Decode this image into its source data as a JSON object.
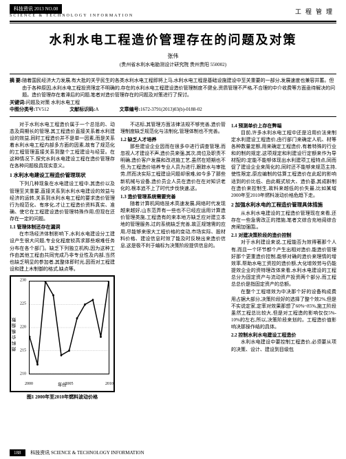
{
  "header": {
    "journal_tag": "科技资讯",
    "issue_line": "2013  NO.08",
    "sub_line": "SCIENCE & TECHNOLOGY INFORMATION",
    "category": "工程管理"
  },
  "title": "水利水电工程造价管理存在的问题及对策",
  "author": "张伟",
  "affiliation": "(贵州省水利水电勘测设计研究院  贵州贵阳  550002)",
  "abstract": {
    "label": "摘 要:",
    "text": "随着国民经济大力发展,有大批的关乎民生的各类水利水电工程即将上马,水利水电工程是基础设施建设中至关重要的一部分,发展速度也兼容并蓄。但由于各种原因,水利水电工程投资限定不明确的,存在的水利水电工程建设造价管理制度不健全,资质管理不严格,不合理的中介收费等方面亟待解决的问题。造价管理存在着滞后的问题,笔者对造价管理存在的问题及对策进行了探讨。"
  },
  "keywords": {
    "label": "关键词:",
    "text": "问题及对策  水利水电工程"
  },
  "clc": {
    "label": "中图分类号:",
    "text": "TV512"
  },
  "doc_code": {
    "label": "文献标识码:",
    "text": "A"
  },
  "article_no": {
    "label": "文章编号:",
    "text": "1672-3791(2013)03(b)-0188-02"
  },
  "col1": {
    "p1": "对于水利水电工程造价属于一个总括的、动态及周期长的管理,其工程造价直接关系着水利建设的效益,同时工程造价并不是单一因素,而是关系着水利水电工程内部多方面的因素,故有了规范化的工程管理直接关系到整个工程建设与经营。在这种情况下,探究水利水电建设工程在造价管理存在各种问题极具现实意义。",
    "h1": "1 水利水电建设工程造价管理现状",
    "p2": "下列几种现象在水电建设工程中,其造价以及管理至关重要,直接关系到水利水电建设的效益与经济的运转,关系到水利水电工程的要求造价管理行为规范化、有序化,才让工程造价资料真实、准确、使它在工程建设造价管理特殊作用,但现在还存在一定的问题。",
    "sh1": "1.1 管理体制还存在漏洞",
    "p3": "在市场经济体制影响下,水利水电建设分工建设产生很大问题,专业化程度较高求那些艰难任务分布在各个部门。缺乏下列独立机构,因为这种工作由其他工程由共同完成乃非专业性及内部,当然也缺乏明显的参加者,其整体即时光,因而对工程建设和建上木制御的格式,缺点等。"
  },
  "col2": {
    "p1": "不达标,其管理方面法律法规不够完善,造价管理制度缺乏规范化与法制化,管理体制也不完善。",
    "sh1": "1.2 缺乏人才培养",
    "p2": "那些建设企业因而在很多中进行调查管理,而忽视人才建设不声,造价员来强,其次,岗位及职责不明确,造价客户发展和改进施工艺,虽然在短期也不但,为工程造价培养专业人员为进行,跟踪水与审批劳,然而决实际工程建设问题却很难,如今多了那些新机械与设备,造价员企人员在造价在在对知识老化的,根本追不上了时代步伐快速,这。",
    "sh2": "1.3 造价管理系统需要完善",
    "p3": "随着计算机网络技术高速发展,网络时代发现越来越好,山东范弄有一些也不已经应运用计算造价管理类施,工程造有的来本地方缺乏应对建立本地的管理服务,过的系统缺乏完善,故正规馆需的应用,尽能够来很大工程价格的变动,市场实际、股材料价格、建设信息时效了能及时反映出来造价信息,这是极不利于编标为决策阶段提供信息的。"
  },
  "col3": {
    "sh1": "1.4 预测单价上存在弊端",
    "p1": "目前,许多水利水电工程中还是沿用价法来制定水利建设工程造价,由行部门来确定人机、材等各种数量定额,用来确定工程造价,有着特殊的行业和的制的规定,这项规定和利建设行定额来作为导材配的:定能不能够体现出水利建项工程特点,同而促了建设企业来简化的,同时还不能够来规范主持,使性限定,原应编制的估算工程造价在此起的影响适到的价比低、由此概式较大、造价基,其成斟制在造价来控制生,故料来越低的价失最,比如某域2000年至2010年燃料泼动价格危趋下走。",
    "h2": "2 加强水利水电的工程造价管理具体措施",
    "p2": "从水利水电建设的工程造价管理现在来看,还存在一些急需改正的措施,笔者文综合充地阅综合房阐加强围,。",
    "sh2": "2.1 对建决策阶段的造价控制",
    "p3": "对于水利建设来说,工程能否为效得著那个人有,而且一个环节都个产生出相对造价,能造价管理好那个更重造价控制,能够对确的造价来理情的增效率,帮助水电工资控的造价额,大化增效劳与仍能提效企业的资特理改体来看,水利水电建设的工程总分为固定资产与流动资产投资两个部分,而工程总总价是指固定资产的总额。",
    "p4": "在整个工程增效为中决那个好的设备构成费用占据大部分,决策阶段好的选择了整个效2%,但是不实说定家,定率对效果那想了60%~85%,施工阶段虽然工程总比较大,但是对工程造的影响仅仅5%­10%的左右,所以,决策阶段来划的。工程造价值影响决那操作结的具体。",
    "sh3": "2.2 控制水利水电建设工程造价",
    "p5": "水利水电建设中要控制工程造价,必须要从项的决策、设计、建设到目级包"
  },
  "chart": {
    "type": "line",
    "x_values": [
      2000,
      2001,
      2002,
      2003,
      2004,
      2005,
      2006,
      2007,
      2008,
      2009,
      2010
    ],
    "y_values": [
      218,
      212,
      230,
      227,
      214,
      215,
      222,
      225,
      226,
      218,
      230
    ],
    "y_label": "燃料价格指数",
    "x_label": "年份",
    "x_ticks": [
      2000,
      2005,
      2010
    ],
    "ylim": [
      210,
      230
    ],
    "y_ticks": [
      210,
      215,
      220,
      225,
      230
    ],
    "line_color": "#000000",
    "bg_color": "#ffffff",
    "border_color": "#000000",
    "grid_color": "#888888",
    "caption": "图1  2000年至2010年燃料波动价格"
  },
  "footer": {
    "page": "188",
    "text": "科技资讯 SCIENCE & TECHNOLOGY INFORMATION"
  }
}
